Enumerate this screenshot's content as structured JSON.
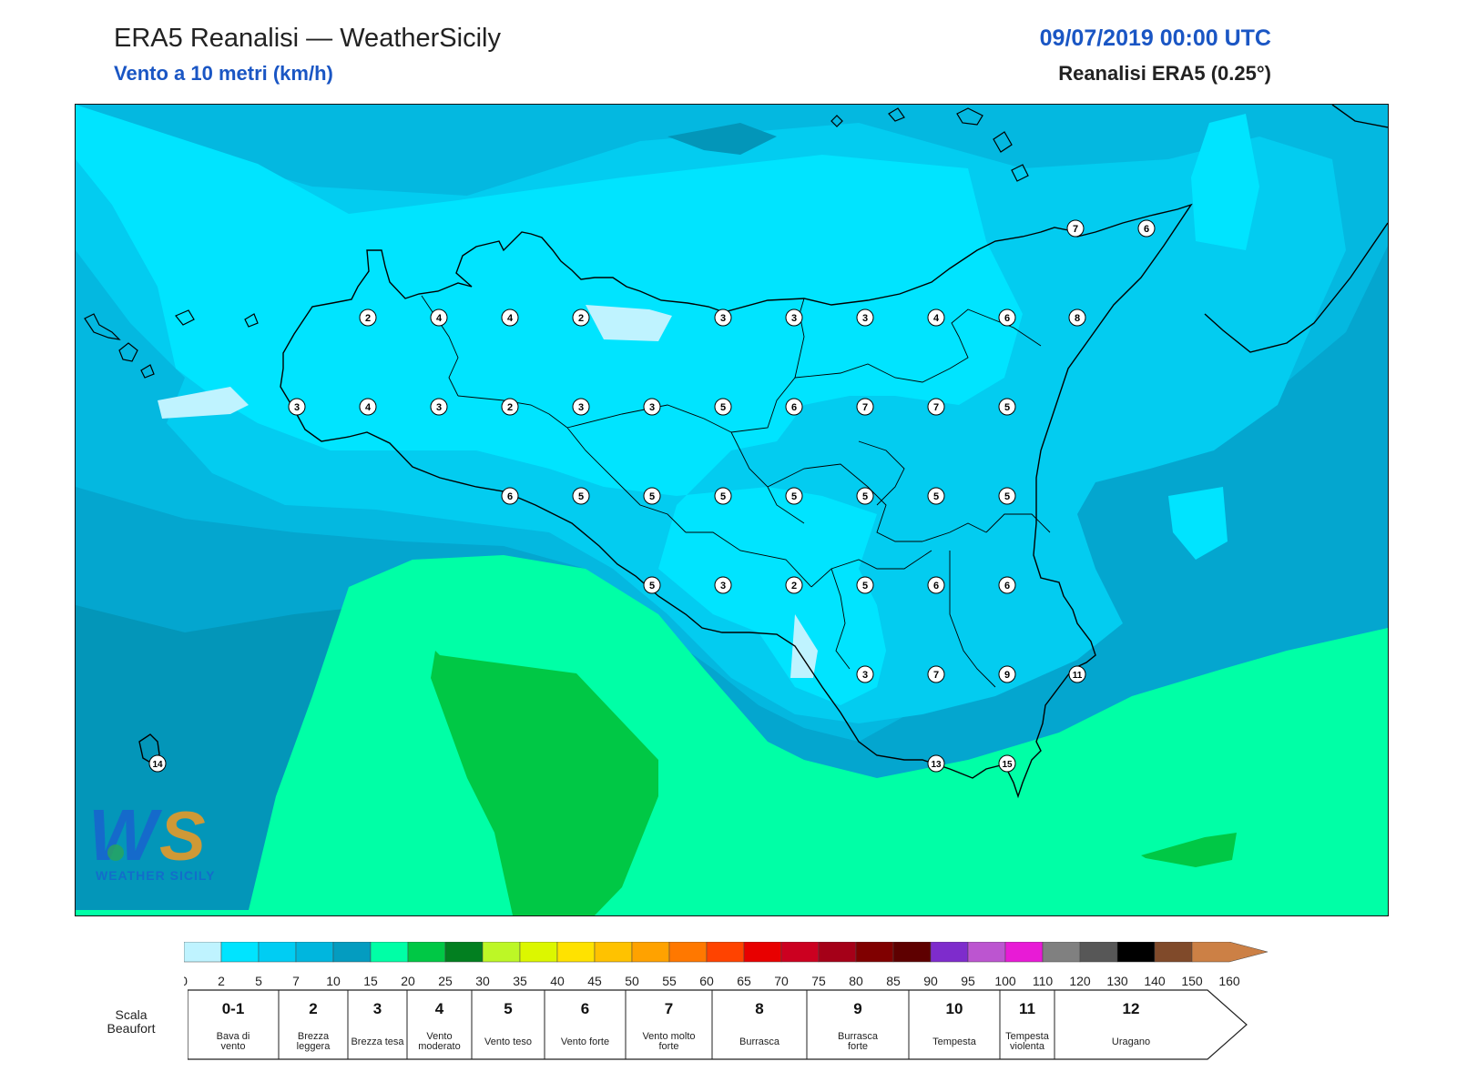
{
  "header": {
    "title": "ERA5 Reanalisi — WeatherSicily",
    "subtitle": "Vento a 10 metri (km/h)",
    "datetime": "09/07/2019 00:00 UTC",
    "model": "Reanalisi ERA5 (0.25°)"
  },
  "map": {
    "logo_text": "WEATHER SICILY",
    "station_values": [
      [
        7,
        6
      ],
      [
        2,
        4,
        4,
        2,
        3,
        3,
        3,
        4,
        6,
        8
      ],
      [
        3,
        4,
        3,
        2,
        3,
        3,
        5,
        6,
        7,
        7,
        5
      ],
      [
        6,
        5,
        5,
        5,
        5,
        5,
        5,
        5
      ],
      [
        5,
        3,
        2,
        5,
        6,
        6
      ],
      [
        3,
        7,
        9,
        11
      ],
      [
        14,
        13,
        15
      ]
    ],
    "fill_colors": {
      "sea_deep": "#0396b9",
      "level_15": "#04a6cf",
      "level_10": "#04b8e0",
      "level_5": "#03ccf0",
      "level_2": "#00e4ff",
      "level_0": "#bff3ff",
      "level_20": "#00ffa6",
      "level_25": "#00c845"
    }
  },
  "colorbar": {
    "ticks": [
      "0",
      "2",
      "5",
      "7",
      "10",
      "15",
      "20",
      "25",
      "30",
      "35",
      "40",
      "45",
      "50",
      "55",
      "60",
      "65",
      "70",
      "75",
      "80",
      "85",
      "90",
      "95",
      "100",
      "110",
      "120",
      "130",
      "140",
      "150",
      "160"
    ],
    "colors": [
      "#bff3ff",
      "#00e4ff",
      "#00cdf3",
      "#00b6de",
      "#049cc0",
      "#00ffa6",
      "#00c845",
      "#027f20",
      "#bdf726",
      "#dcf700",
      "#ffe200",
      "#ffc200",
      "#ffa200",
      "#ff7800",
      "#ff4300",
      "#e80000",
      "#cc0020",
      "#a50018",
      "#800000",
      "#5e0000",
      "#7e2ccc",
      "#bc55d0",
      "#e81bd6",
      "#808080",
      "#575757",
      "#000000",
      "#804a2a",
      "#cc8045"
    ]
  },
  "beaufort": {
    "label": "Scala Beaufort",
    "entries": [
      {
        "force": "0-1",
        "desc": "Bava di vento"
      },
      {
        "force": "2",
        "desc": "Brezza leggera"
      },
      {
        "force": "3",
        "desc": "Brezza tesa"
      },
      {
        "force": "4",
        "desc": "Vento moderato"
      },
      {
        "force": "5",
        "desc": "Vento teso"
      },
      {
        "force": "6",
        "desc": "Vento forte"
      },
      {
        "force": "7",
        "desc": "Vento molto forte"
      },
      {
        "force": "8",
        "desc": "Burrasca"
      },
      {
        "force": "9",
        "desc": "Burrasca forte"
      },
      {
        "force": "10",
        "desc": "Tempesta"
      },
      {
        "force": "11",
        "desc": "Tempesta violenta"
      },
      {
        "force": "12",
        "desc": "Uragano"
      }
    ]
  }
}
